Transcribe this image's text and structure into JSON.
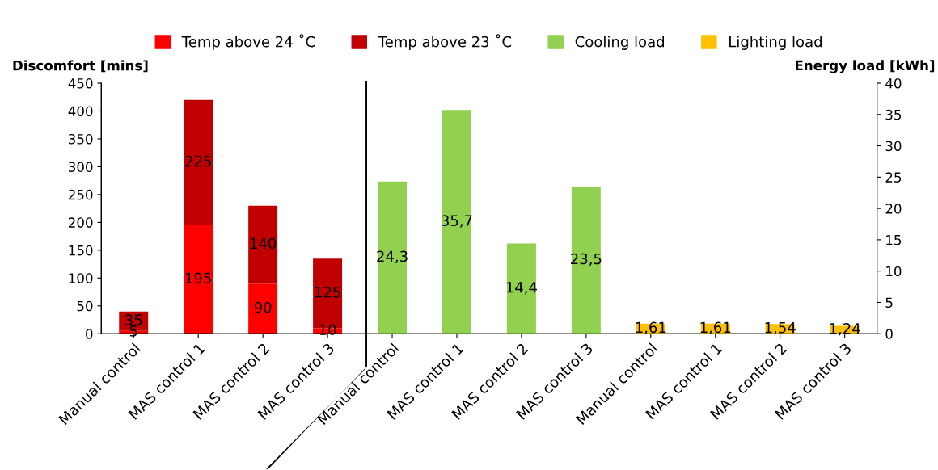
{
  "chart_data": {
    "type": "bar",
    "stacked": true,
    "categories": [
      "Manual control",
      "MAS control 1",
      "MAS control 2",
      "MAS control 3",
      "Manual control",
      "MAS control 1",
      "MAS control 2",
      "MAS control 3",
      "Manual control",
      "MAS control 1",
      "MAS control 2",
      "MAS control 3"
    ],
    "series": [
      {
        "name": "Temp above 24 ˚C",
        "color": "#ff0000",
        "values": [
          5,
          195,
          90,
          10,
          null,
          null,
          null,
          null,
          null,
          null,
          null,
          null
        ],
        "value_labels": [
          "5",
          "195",
          "90",
          "10",
          null,
          null,
          null,
          null,
          null,
          null,
          null,
          null
        ]
      },
      {
        "name": "Temp above 23 ˚C",
        "color": "#c00000",
        "values": [
          35,
          225,
          140,
          125,
          null,
          null,
          null,
          null,
          null,
          null,
          null,
          null
        ],
        "value_labels": [
          "35",
          "225",
          "140",
          "125",
          null,
          null,
          null,
          null,
          null,
          null,
          null,
          null
        ]
      },
      {
        "name": "Cooling load",
        "color": "#92d050",
        "axis": "y2",
        "values": [
          null,
          null,
          null,
          null,
          24.3,
          35.7,
          14.4,
          23.5,
          null,
          null,
          null,
          null
        ],
        "value_labels": [
          null,
          null,
          null,
          null,
          "24,3",
          "35,7",
          "14,4",
          "23,5",
          null,
          null,
          null,
          null
        ]
      },
      {
        "name": "Lighting load",
        "color": "#ffc000",
        "axis": "y2",
        "values": [
          null,
          null,
          null,
          null,
          null,
          null,
          null,
          null,
          1.61,
          1.61,
          1.54,
          1.24
        ],
        "value_labels": [
          null,
          null,
          null,
          null,
          null,
          null,
          null,
          null,
          "1,61",
          "1,61",
          "1,54",
          "1,24"
        ]
      }
    ],
    "ylabel": "Discomfort [mins]",
    "y2label": "Energy load [kWh]",
    "ylim": [
      0,
      450
    ],
    "yticks": [
      0,
      50,
      100,
      150,
      200,
      250,
      300,
      350,
      400,
      450
    ],
    "y2lim": [
      0,
      40
    ],
    "y2ticks": [
      0,
      5,
      10,
      15,
      20,
      25,
      30,
      35,
      40
    ],
    "grid": false,
    "legend": "top"
  }
}
